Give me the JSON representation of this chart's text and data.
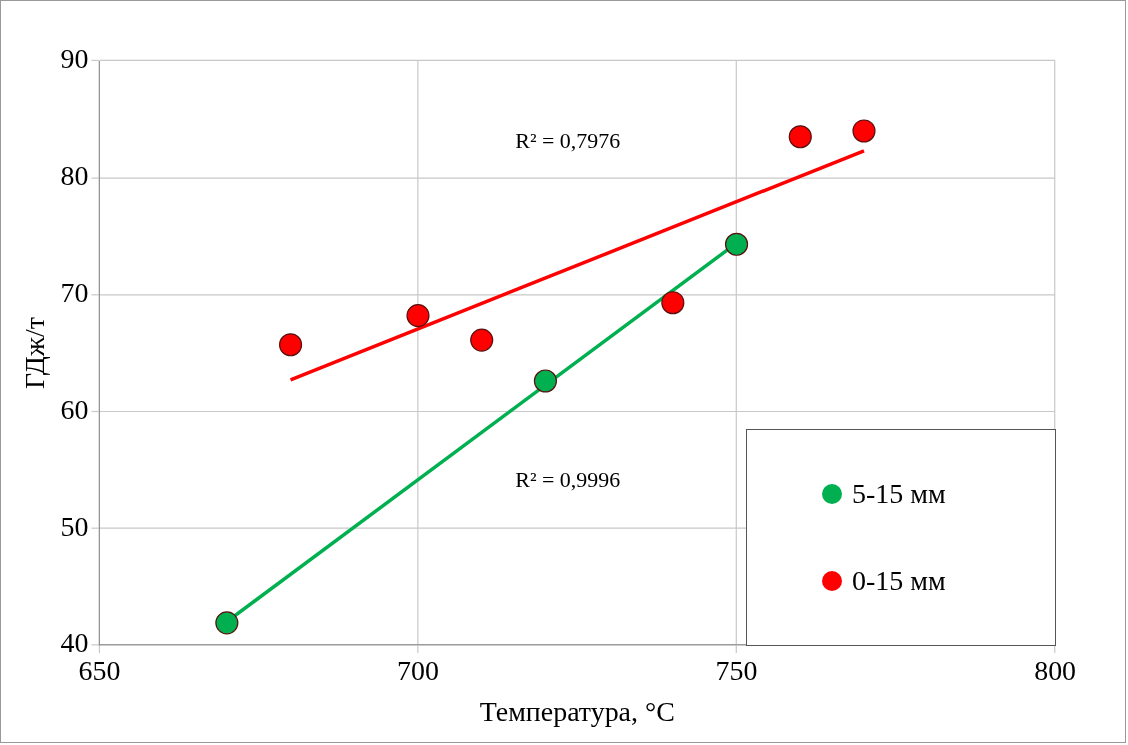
{
  "chart_data": {
    "type": "scatter",
    "xlabel": "Температура, °C",
    "ylabel": "ГДж/т",
    "xlim": [
      650,
      800
    ],
    "xticks": [
      650,
      700,
      750,
      800
    ],
    "ylim": [
      40,
      90
    ],
    "yticks": [
      40,
      50,
      60,
      70,
      80,
      90
    ],
    "grid": true,
    "legend": "bottom right",
    "series": [
      {
        "name": "5-15 мм",
        "marker": "circle",
        "color": "#00b050",
        "x": [
          670,
          720,
          750
        ],
        "values": [
          41.9,
          62.6,
          74.3
        ]
      },
      {
        "name": "0-15 мм",
        "marker": "circle",
        "color": "#ff0000",
        "x": [
          680,
          700,
          710,
          740,
          760,
          770
        ],
        "values": [
          65.7,
          68.2,
          66.1,
          69.3,
          83.5,
          84.0
        ]
      },
      {
        "type": "line",
        "marker": "none",
        "color": "#00b050",
        "x": [
          670,
          750
        ],
        "values": [
          42.0,
          74.4
        ],
        "line_style": "solid"
      },
      {
        "type": "line",
        "marker": "none",
        "color": "#ff0000",
        "x": [
          680,
          770
        ],
        "values": [
          62.7,
          82.3
        ],
        "line_style": "solid"
      }
    ],
    "annotations": [
      "R² = 0,7976",
      "R² = 0,9996"
    ]
  }
}
